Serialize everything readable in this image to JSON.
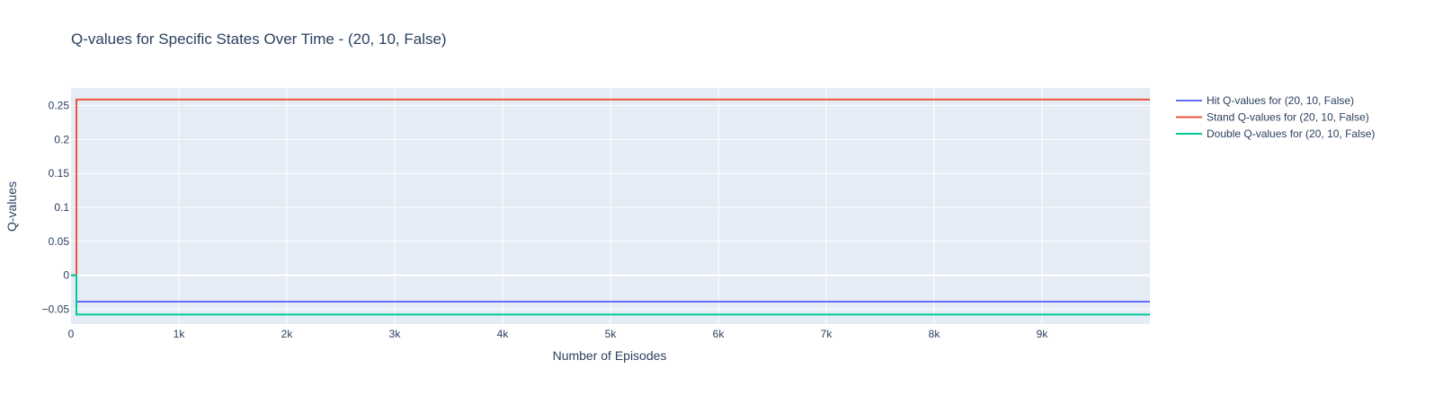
{
  "chart_data": {
    "type": "line",
    "title": "Q-values for Specific States Over Time - (20, 10, False)",
    "xlabel": "Number of Episodes",
    "ylabel": "Q-values",
    "xlim": [
      0,
      10000
    ],
    "ylim": [
      -0.072,
      0.276
    ],
    "x_ticks": [
      {
        "value": 0,
        "label": "0"
      },
      {
        "value": 1000,
        "label": "1k"
      },
      {
        "value": 2000,
        "label": "2k"
      },
      {
        "value": 3000,
        "label": "3k"
      },
      {
        "value": 4000,
        "label": "4k"
      },
      {
        "value": 5000,
        "label": "5k"
      },
      {
        "value": 6000,
        "label": "6k"
      },
      {
        "value": 7000,
        "label": "7k"
      },
      {
        "value": 8000,
        "label": "8k"
      },
      {
        "value": 9000,
        "label": "9k"
      }
    ],
    "y_ticks": [
      {
        "value": -0.05,
        "label": "−0.05"
      },
      {
        "value": 0,
        "label": "0"
      },
      {
        "value": 0.05,
        "label": "0.05"
      },
      {
        "value": 0.1,
        "label": "0.1"
      },
      {
        "value": 0.15,
        "label": "0.15"
      },
      {
        "value": 0.2,
        "label": "0.2"
      },
      {
        "value": 0.25,
        "label": "0.25"
      }
    ],
    "grid": true,
    "legend_position": "right",
    "plot_bgcolor": "#E5ECF6",
    "series": [
      {
        "name": "Hit Q-values for (20, 10, False)",
        "color": "#636EFA",
        "x": [
          0,
          50,
          50,
          10000
        ],
        "y": [
          0,
          0,
          -0.039,
          -0.039
        ]
      },
      {
        "name": "Stand Q-values for (20, 10, False)",
        "color": "#EF553B",
        "x": [
          0,
          50,
          50,
          10000
        ],
        "y": [
          0,
          0,
          0.259,
          0.259
        ]
      },
      {
        "name": "Double Q-values for (20, 10, False)",
        "color": "#00CC96",
        "x": [
          0,
          50,
          50,
          10000
        ],
        "y": [
          0,
          0,
          -0.058,
          -0.058
        ]
      }
    ]
  }
}
